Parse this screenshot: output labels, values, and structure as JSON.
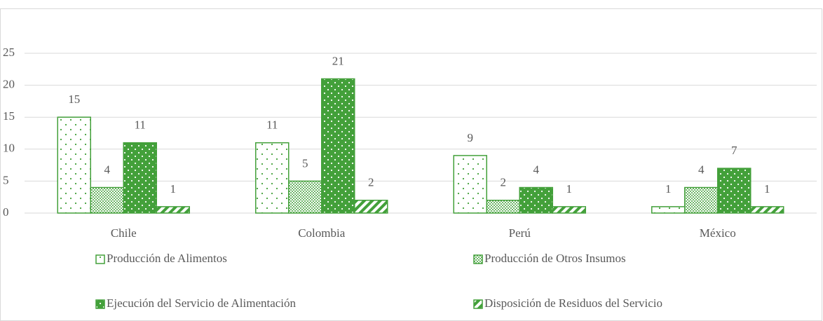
{
  "chart_data": {
    "type": "bar",
    "categories": [
      "Chile",
      "Colombia",
      "Perú",
      "México"
    ],
    "series": [
      {
        "name": "Producción de Alimentos",
        "color": "#43a03a",
        "values": [
          15,
          11,
          9,
          1
        ]
      },
      {
        "name": "Producción de Otros Insumos",
        "color": "#43a03a",
        "values": [
          4,
          5,
          2,
          4
        ]
      },
      {
        "name": "Ejecución del Servicio de Alimentación",
        "color": "#43a03a",
        "values": [
          11,
          21,
          4,
          7
        ]
      },
      {
        "name": "Disposición de Residuos del Servicio",
        "color": "#43a03a",
        "values": [
          1,
          2,
          1,
          1
        ]
      }
    ],
    "ylim": [
      0,
      25
    ],
    "yticks": [
      0,
      5,
      10,
      15,
      20,
      25
    ],
    "grid": true,
    "legend": "bottom"
  }
}
